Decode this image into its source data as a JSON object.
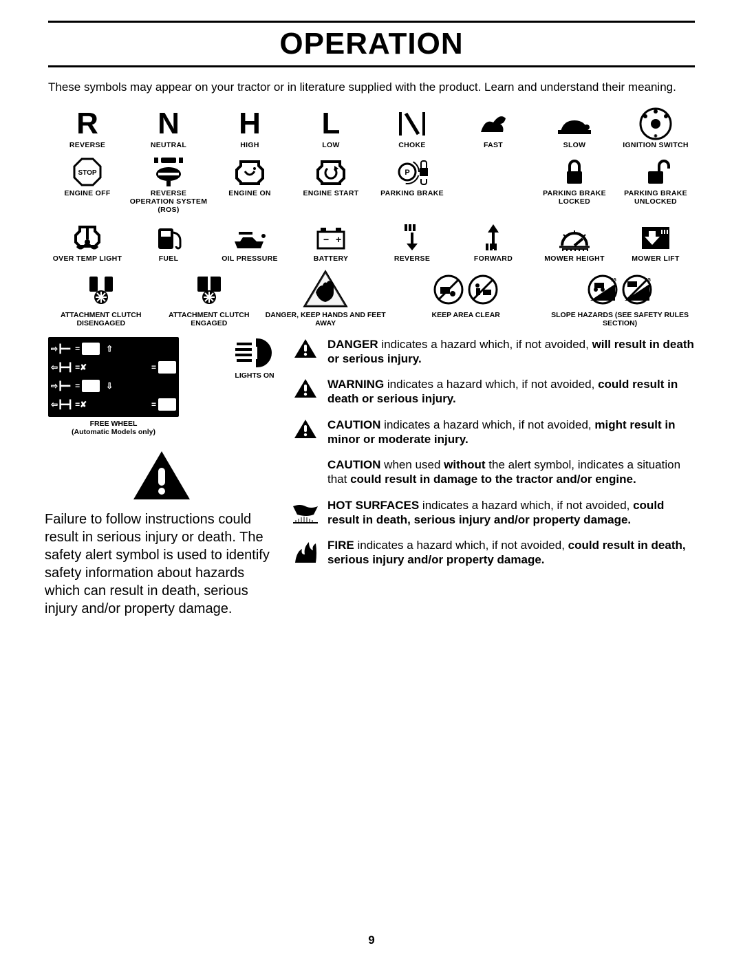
{
  "title": "OPERATION",
  "intro": "These symbols may appear on your tractor or in literature supplied with the product.  Learn and understand their meaning.",
  "page_number": "9",
  "colors": {
    "fg": "#000000",
    "bg": "#ffffff"
  },
  "rows": {
    "r1": [
      {
        "glyph": "R",
        "label": "REVERSE"
      },
      {
        "glyph": "N",
        "label": "NEUTRAL"
      },
      {
        "glyph": "H",
        "label": "HIGH"
      },
      {
        "glyph": "L",
        "label": "LOW"
      },
      {
        "icon": "choke",
        "label": "CHOKE"
      },
      {
        "icon": "rabbit",
        "label": "FAST"
      },
      {
        "icon": "turtle",
        "label": "SLOW"
      },
      {
        "icon": "ignition",
        "label": "IGNITION SWITCH"
      }
    ],
    "r2": [
      {
        "icon": "stop",
        "label": "ENGINE OFF"
      },
      {
        "icon": "ros",
        "label": "REVERSE OPERATION SYSTEM (ROS)"
      },
      {
        "icon": "engine-on",
        "label": "ENGINE ON"
      },
      {
        "icon": "engine-start",
        "label": "ENGINE START"
      },
      {
        "icon": "pbrake",
        "label": "PARKING BRAKE"
      },
      {
        "icon": "",
        "label": ""
      },
      {
        "icon": "lock",
        "label": "PARKING BRAKE LOCKED"
      },
      {
        "icon": "unlock",
        "label": "PARKING BRAKE UNLOCKED"
      }
    ],
    "r3": [
      {
        "icon": "overtemp",
        "label": "OVER TEMP LIGHT"
      },
      {
        "icon": "fuel",
        "label": "FUEL"
      },
      {
        "icon": "oil",
        "label": "OIL PRESSURE"
      },
      {
        "icon": "battery",
        "label": "BATTERY"
      },
      {
        "icon": "reverse-arrow",
        "label": "REVERSE"
      },
      {
        "icon": "forward-arrow",
        "label": "FORWARD"
      },
      {
        "icon": "mower-height",
        "label": "MOWER HEIGHT"
      },
      {
        "icon": "mower-lift",
        "label": "MOWER LIFT"
      }
    ],
    "r4": [
      {
        "icon": "clutch-off",
        "label": "ATTACHMENT CLUTCH DISENGAGED",
        "span": 2
      },
      {
        "icon": "clutch-on",
        "label": "ATTACHMENT CLUTCH ENGAGED",
        "span": 1
      },
      {
        "icon": "hand-danger",
        "label": "DANGER, KEEP HANDS AND FEET AWAY",
        "span": 2
      },
      {
        "icon": "keep-clear",
        "label": "KEEP AREA CLEAR",
        "span": 2
      },
      {
        "icon": "slope",
        "label": "SLOPE HAZARDS (SEE SAFETY RULES SECTION)",
        "span": 2
      }
    ]
  },
  "free_wheel": {
    "label": "FREE WHEEL",
    "sub": "(Automatic Models only)"
  },
  "lights_on": {
    "label": "LIGHTS ON"
  },
  "failure_text": "Failure to follow instructions could result in serious injury or death. The safety alert symbol is used to identify safety information about hazards which can result in death, serious injury and/or property damage.",
  "definitions": [
    {
      "icon": "tri",
      "term": "DANGER",
      "mid": " indicates a hazard which, if not avoided, ",
      "bold_tail": "will result in death or serious injury."
    },
    {
      "icon": "tri",
      "term": "WARNING",
      "mid": " indicates a hazard which, if not avoided, ",
      "bold_tail": "could result in death or serious injury."
    },
    {
      "icon": "tri",
      "term": "CAUTION",
      "mid": " indicates a hazard which, if not avoided, ",
      "bold_tail": "might result in minor or moderate injury."
    },
    {
      "icon": "none",
      "term": "CAUTION",
      "mid_html": " when used <b>without</b> the alert symbol, indicates a situation that <b>could result in damage to the tractor and/or engine.</b>"
    },
    {
      "icon": "hot",
      "term": "HOT SURFACES",
      "mid_html": " indicates a hazard which, if not avoided, <b>could result in death, serious injury and/or property damage.</b>"
    },
    {
      "icon": "fire",
      "term": "FIRE",
      "mid_html": " indicates a hazard which, if not avoided, <b>could result in death, serious injury and/or property damage.</b>"
    }
  ]
}
